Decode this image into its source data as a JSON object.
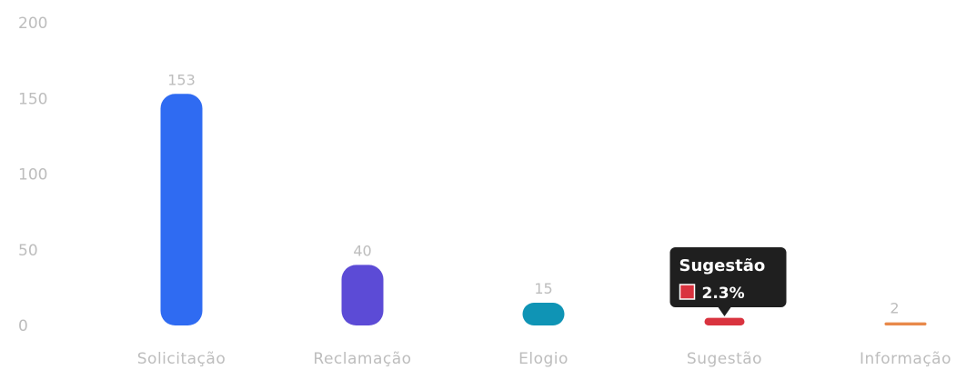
{
  "chart_data": {
    "type": "bar",
    "categories": [
      "Solicitação",
      "Reclamação",
      "Elogio",
      "Sugestão",
      "Informação"
    ],
    "values": [
      153,
      40,
      15,
      5,
      2
    ],
    "data_labels": [
      "153",
      "40",
      "15",
      "",
      "2"
    ],
    "colors": [
      "#2f6bf2",
      "#5c4bd6",
      "#0f94b5",
      "#d9333f",
      "#e8894a"
    ],
    "ylim": [
      0,
      200
    ],
    "yticks": [
      "200",
      "150",
      "100",
      "50",
      "0"
    ],
    "ytick_values": [
      200,
      150,
      100,
      50,
      0
    ],
    "grid": false,
    "legend": "none",
    "tooltip": {
      "category": "Sugestão",
      "label": "Sugestão",
      "value": "2.3%",
      "swatch_color": "#d9333f"
    }
  }
}
